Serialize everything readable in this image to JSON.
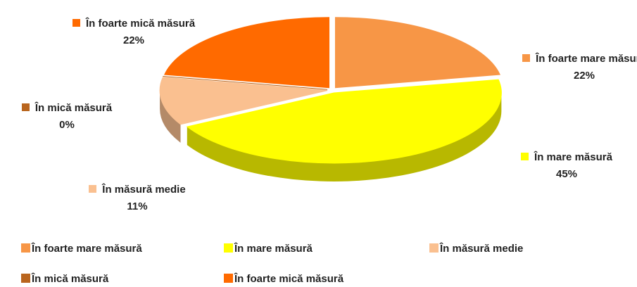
{
  "chart_data": {
    "type": "pie",
    "series": [
      {
        "name": "În foarte mare măsură",
        "color": "#f79646",
        "values": [
          22
        ],
        "value_labels": [
          "22%"
        ]
      },
      {
        "name": "În mare măsură",
        "color": "#ffff00",
        "values": [
          45
        ],
        "value_labels": [
          "45%"
        ]
      },
      {
        "name": "În măsură medie",
        "color": "#fac090",
        "values": [
          11
        ],
        "value_labels": [
          "11%"
        ]
      },
      {
        "name": "În mică măsură",
        "color": "#b9651e",
        "values": [
          0
        ],
        "value_labels": [
          "0%"
        ]
      },
      {
        "name": "În foarte mică măsură",
        "color": "#ff6a00",
        "values": [
          22
        ],
        "value_labels": [
          "22%"
        ]
      }
    ]
  }
}
